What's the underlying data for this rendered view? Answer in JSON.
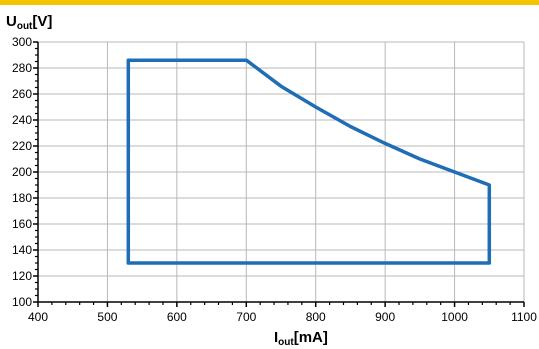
{
  "colors": {
    "accent": "#f5c400",
    "series": "#1f6db5",
    "grid": "#b8b8b8",
    "axis": "#000000"
  },
  "chart_data": {
    "type": "line",
    "title": "",
    "ylabel": {
      "main": "U",
      "sub": "out",
      "unit": "[V]"
    },
    "xlabel": {
      "main": "I",
      "sub": "out",
      "unit": "[mA]"
    },
    "xlim": [
      400,
      1100
    ],
    "ylim": [
      100,
      300
    ],
    "x_ticks": [
      400,
      500,
      600,
      700,
      800,
      900,
      1000,
      1100
    ],
    "y_ticks": [
      100,
      120,
      140,
      160,
      180,
      200,
      220,
      240,
      260,
      280,
      300
    ],
    "x_tick_labels": [
      "400",
      "500",
      "600",
      "700",
      "800",
      "900",
      "1000",
      "1100"
    ],
    "y_tick_labels": [
      "100",
      "120",
      "140",
      "160",
      "180",
      "200",
      "220",
      "240",
      "260",
      "280",
      "300"
    ],
    "grid": true,
    "legend": "none",
    "series": [
      {
        "closed": true,
        "points": [
          [
            530,
            286
          ],
          [
            700,
            286
          ],
          [
            750,
            266
          ],
          [
            800,
            250
          ],
          [
            850,
            235
          ],
          [
            900,
            222
          ],
          [
            950,
            210
          ],
          [
            1000,
            200
          ],
          [
            1050,
            190
          ],
          [
            1050,
            130
          ],
          [
            530,
            130
          ]
        ]
      }
    ]
  }
}
